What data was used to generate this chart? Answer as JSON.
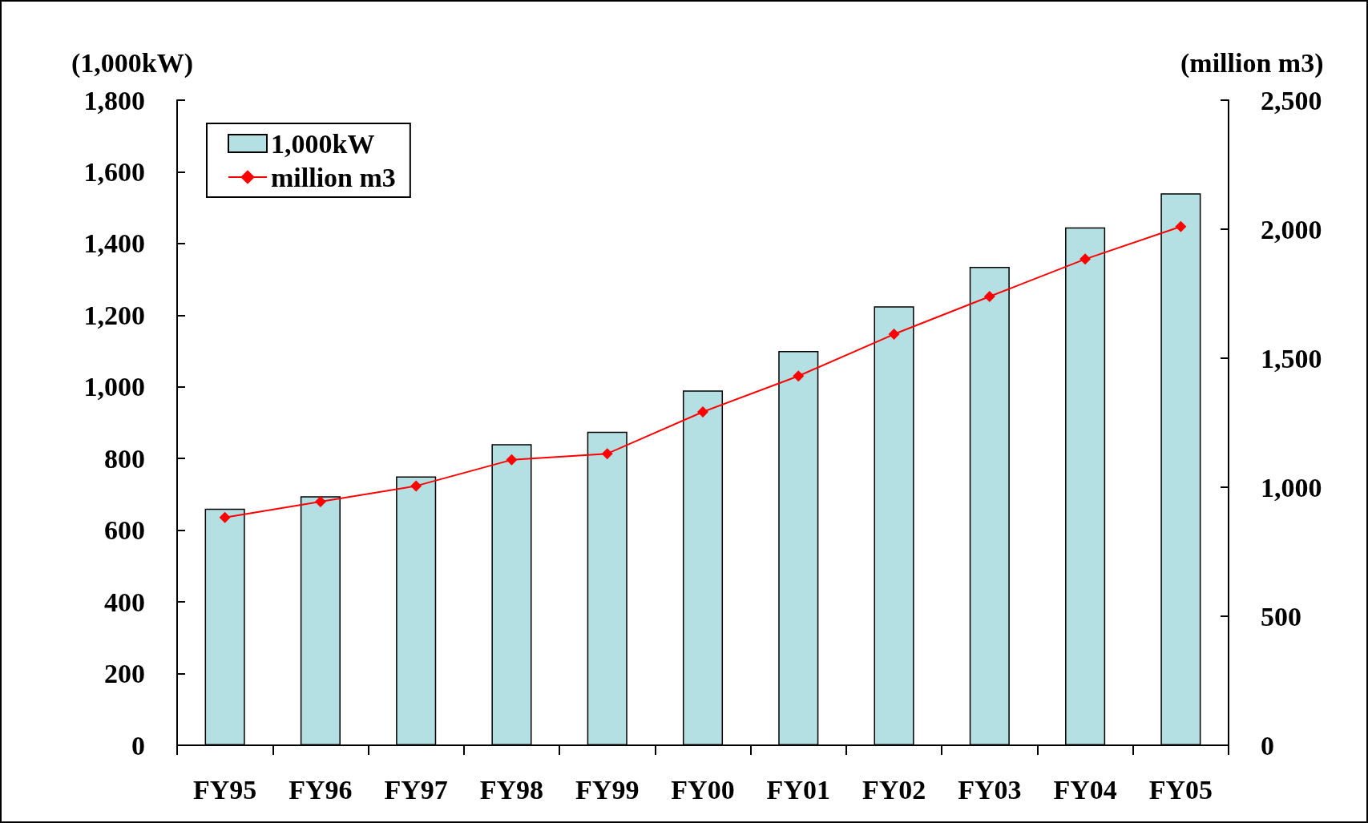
{
  "chart_data": {
    "type": "bar",
    "ylabel": "(1,000kW)",
    "y2label": "(million m3)",
    "categories": [
      "FY95",
      "FY96",
      "FY97",
      "FY98",
      "FY99",
      "FY00",
      "FY01",
      "FY02",
      "FY03",
      "FY04",
      "FY05"
    ],
    "series": [
      {
        "name": "1,000kW",
        "color": "#b4e0e3",
        "values": [
          660,
          695,
          750,
          840,
          875,
          990,
          1100,
          1225,
          1335,
          1445,
          1540
        ]
      },
      {
        "name": "million m3",
        "type": "line",
        "axis": "y2",
        "color": "#ff0000",
        "marker": "diamond",
        "line_style": "solid",
        "values": [
          883,
          944,
          1005,
          1106,
          1130,
          1292,
          1431,
          1593,
          1739,
          1884,
          2010
        ]
      }
    ],
    "ylim": [
      0,
      1800
    ],
    "yticks": [
      0,
      200,
      400,
      600,
      800,
      {
        "value": 1000,
        "label": "1,000"
      },
      {
        "value": 1200,
        "label": "1,200"
      },
      {
        "value": 1400,
        "label": "1,400"
      },
      {
        "value": 1600,
        "label": "1,600"
      },
      {
        "value": 1800,
        "label": "1,800"
      }
    ],
    "y2lim": [
      0,
      2500
    ],
    "y2ticks": [
      0,
      500,
      {
        "value": 1000,
        "label": "1,000"
      },
      {
        "value": 1500,
        "label": "1,500"
      },
      {
        "value": 2000,
        "label": "2,000"
      },
      {
        "value": 2500,
        "label": "2,500"
      }
    ],
    "grid": false,
    "legend": "top left"
  }
}
